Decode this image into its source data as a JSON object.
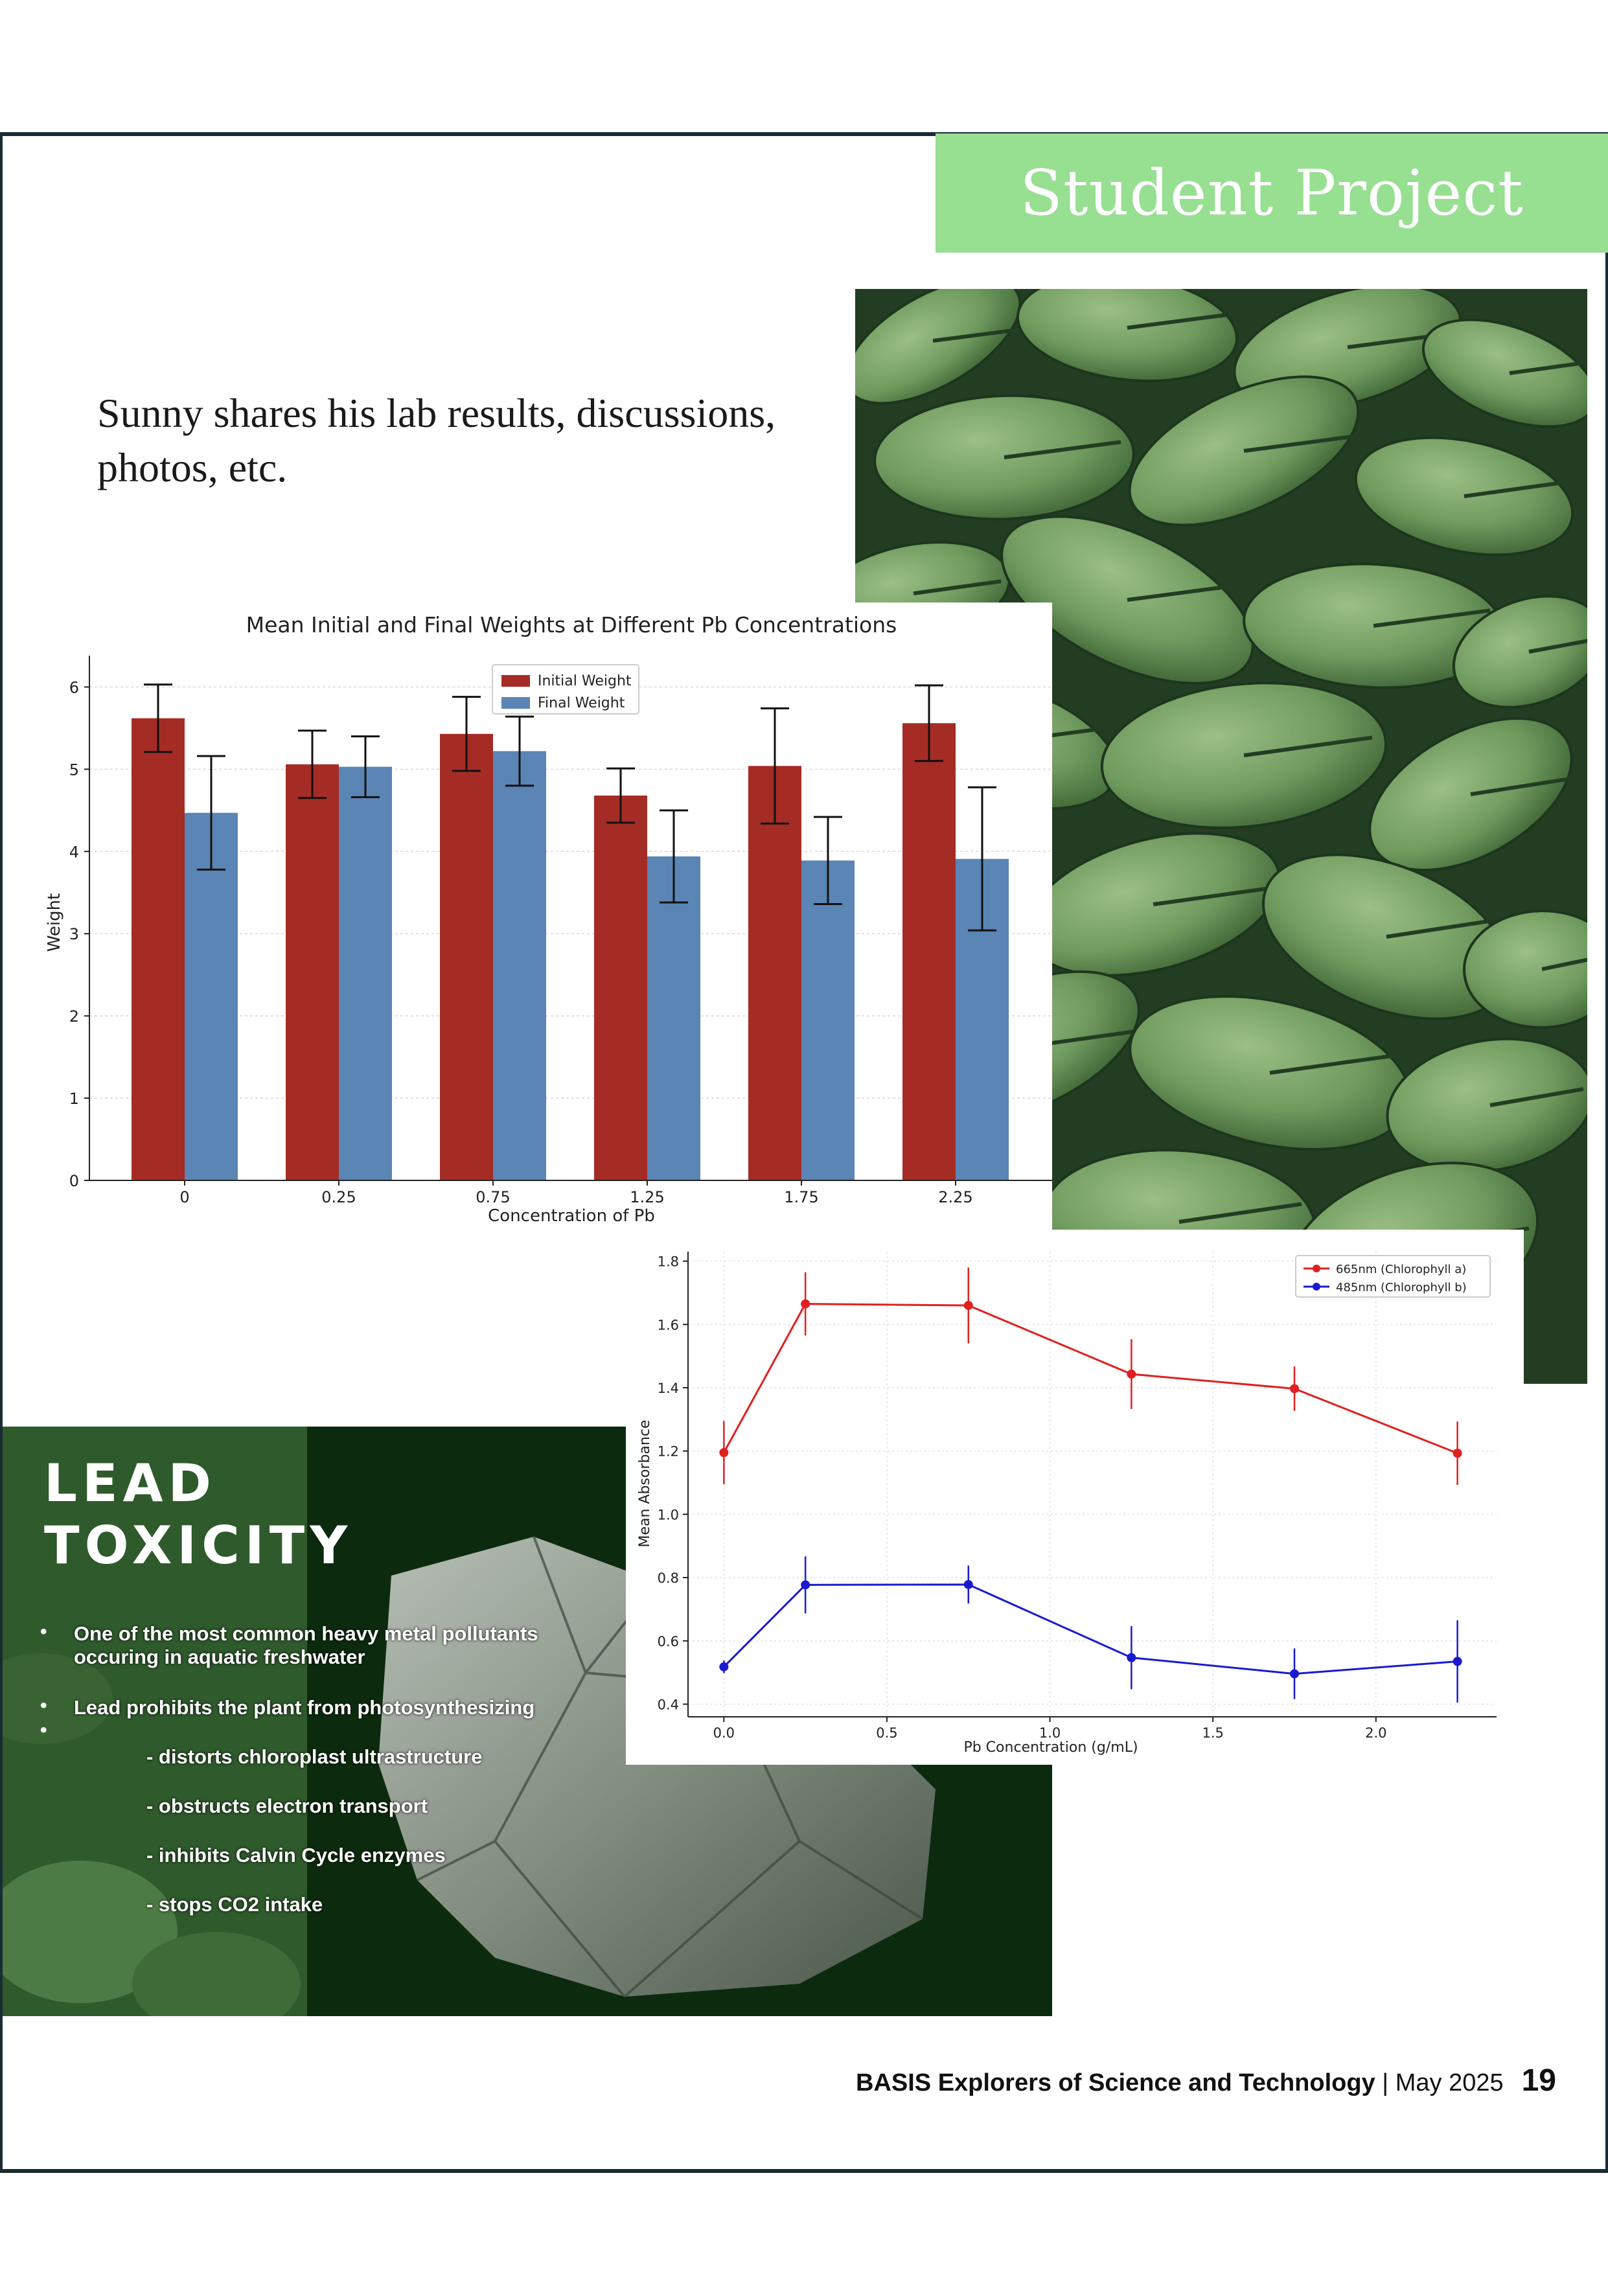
{
  "header": {
    "banner_text": "Student Project"
  },
  "intro": {
    "line1": "Sunny shares his lab results, discussions,",
    "line2": "photos, etc."
  },
  "colors": {
    "banner": "#97df91",
    "initial_bar": "#a52c25",
    "final_bar": "#5a85b5",
    "chl_a": "#e02020",
    "chl_b": "#1a1ad0",
    "lead_panel_bg": "#0c2b0e"
  },
  "lead_toxicity": {
    "title_line1": "LEAD",
    "title_line2": "TOXICITY",
    "bullet1_line1": "One of the most common heavy metal pollutants",
    "bullet1_line2": "occuring in aquatic freshwater",
    "bullet2": "Lead prohibits the plant from photosynthesizing",
    "sub1": "- distorts chloroplast ultrastructure",
    "sub2": "- obstructs electron transport",
    "sub3": "- inhibits Calvin Cycle enzymes",
    "sub4": "- stops CO2 intake"
  },
  "footer": {
    "publication": "BASIS Explorers of Science and Technology",
    "separator": " | ",
    "date": "May 2025",
    "page_number": "19"
  },
  "chart_data": [
    {
      "type": "bar",
      "title": "Mean Initial and Final Weights at Different Pb Concentrations",
      "xlabel": "Concentration of Pb",
      "ylabel": "Weight",
      "categories": [
        "0",
        "0.25",
        "0.75",
        "1.25",
        "1.75",
        "2.25"
      ],
      "ylim": [
        0,
        6.35
      ],
      "yticks": [
        "0",
        "1",
        "2",
        "3",
        "4",
        "5",
        "6"
      ],
      "legend_position": "top-center",
      "series": [
        {
          "name": "Initial Weight",
          "values": [
            5.62,
            5.06,
            5.43,
            4.68,
            5.04,
            5.56
          ],
          "errors": [
            0.41,
            0.41,
            0.45,
            0.33,
            0.7,
            0.46
          ]
        },
        {
          "name": "Final Weight",
          "values": [
            4.47,
            5.03,
            5.22,
            3.94,
            3.89,
            3.91
          ],
          "errors": [
            0.69,
            0.37,
            0.42,
            0.56,
            0.53,
            0.87
          ]
        }
      ]
    },
    {
      "type": "line",
      "title": "",
      "xlabel": "Pb Concentration (g/mL)",
      "ylabel": "Mean Absorbance",
      "x": [
        0.0,
        0.25,
        0.75,
        1.25,
        1.75,
        2.25
      ],
      "xlim": [
        -0.11,
        2.37
      ],
      "ylim": [
        0.36,
        1.83
      ],
      "xticks": [
        "0.0",
        "0.5",
        "1.0",
        "1.5",
        "2.0"
      ],
      "yticks": [
        "0.4",
        "0.6",
        "0.8",
        "1.0",
        "1.2",
        "1.4",
        "1.6",
        "1.8"
      ],
      "grid": true,
      "legend_position": "top-right",
      "series": [
        {
          "name": "665nm (Chlorophyll a)",
          "values": [
            1.195,
            1.665,
            1.66,
            1.443,
            1.397,
            1.193
          ],
          "errors": [
            0.1,
            0.1,
            0.12,
            0.11,
            0.07,
            0.1
          ]
        },
        {
          "name": "485nm (Chlorophyll b)",
          "values": [
            0.518,
            0.777,
            0.778,
            0.547,
            0.496,
            0.535
          ],
          "errors": [
            0.02,
            0.09,
            0.06,
            0.1,
            0.08,
            0.13
          ]
        }
      ]
    }
  ]
}
